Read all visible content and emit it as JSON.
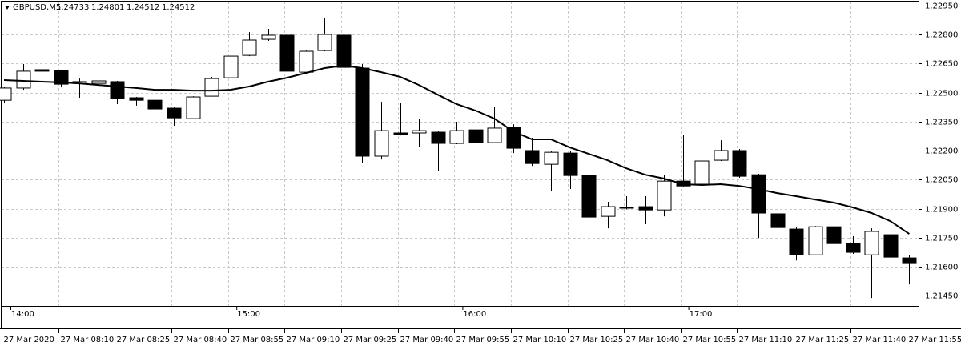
{
  "chart_data": {
    "type": "candlestick",
    "title": "GBPUSD,M5",
    "header_values": [
      1.24733,
      1.24801,
      1.24512,
      1.24512
    ],
    "ylim": [
      1.21398,
      1.22979
    ],
    "yticks": [
      {
        "value": 1.2295,
        "label": "1.22950"
      },
      {
        "value": 1.228,
        "label": "1.22800"
      },
      {
        "value": 1.2265,
        "label": "1.22650"
      },
      {
        "value": 1.225,
        "label": "1.22500"
      },
      {
        "value": 1.2235,
        "label": "1.22350"
      },
      {
        "value": 1.222,
        "label": "1.22200"
      },
      {
        "value": 1.2205,
        "label": "1.22050"
      },
      {
        "value": 1.219,
        "label": "1.21900"
      },
      {
        "value": 1.2175,
        "label": "1.21750"
      },
      {
        "value": 1.216,
        "label": "1.21600"
      },
      {
        "value": 1.2145,
        "label": "1.21450"
      }
    ],
    "grid": true,
    "time_strip": [
      "14:00",
      "15:00",
      "16:00",
      "17:00"
    ],
    "categories": [
      "27 Mar 2020",
      null,
      null,
      "27 Mar 08:10",
      null,
      null,
      "27 Mar 08:25",
      null,
      null,
      "27 Mar 08:40",
      null,
      null,
      "27 Mar 08:55",
      null,
      null,
      "27 Mar 09:10",
      null,
      null,
      "27 Mar 09:25",
      null,
      null,
      "27 Mar 09:40",
      null,
      null,
      "27 Mar 09:55",
      null,
      null,
      "27 Mar 10:10",
      null,
      null,
      "27 Mar 10:25",
      null,
      null,
      "27 Mar 10:40",
      null,
      null,
      "27 Mar 10:55",
      null,
      null,
      "27 Mar 11:10",
      null,
      null,
      "27 Mar 11:25",
      null,
      null,
      "27 Mar 11:40",
      null,
      null,
      "27 Mar 11:55"
    ],
    "bull_color": "#ffffff",
    "bear_color": "#000000",
    "outline_color": "#000000",
    "open": [
      1.22461,
      1.22524,
      1.22619,
      1.22615,
      1.22548,
      1.22548,
      1.22557,
      1.22474,
      1.22461,
      1.2242,
      1.22366,
      1.22482,
      1.22577,
      1.22693,
      1.22776,
      1.22797,
      1.22606,
      1.22718,
      1.22797,
      1.22627,
      1.22172,
      1.22292,
      1.22292,
      1.22296,
      1.22238,
      1.22308,
      1.22242,
      1.22321,
      1.22201,
      1.2213,
      1.22188,
      1.22072,
      1.21861,
      1.21907,
      1.21911,
      1.21894,
      1.22043,
      1.22027,
      1.22151,
      1.22201,
      1.22076,
      1.21874,
      1.21795,
      1.21662,
      1.21807,
      1.2172,
      1.21662,
      1.21766,
      1.21646
    ],
    "high": [
      1.22532,
      1.22648,
      1.2264,
      1.22619,
      1.22573,
      1.22573,
      1.22561,
      1.22478,
      1.22466,
      1.22424,
      1.22482,
      1.22582,
      1.22697,
      1.22813,
      1.2283,
      1.22801,
      1.22718,
      1.22888,
      1.22801,
      1.22648,
      1.22453,
      1.22449,
      1.22366,
      1.22304,
      1.2235,
      1.2249,
      1.22428,
      1.22337,
      1.22267,
      1.22197,
      1.22197,
      1.22081,
      1.21936,
      1.21965,
      1.21965,
      1.22076,
      1.22283,
      1.22217,
      1.22254,
      1.22209,
      1.22081,
      1.21882,
      1.21807,
      1.21811,
      1.21861,
      1.21758,
      1.21799,
      1.2177,
      1.21662
    ],
    "low": [
      1.22449,
      1.22515,
      1.22606,
      1.22532,
      1.22474,
      1.2254,
      1.22441,
      1.22433,
      1.22408,
      1.22329,
      1.22366,
      1.22482,
      1.22569,
      1.22689,
      1.22768,
      1.22606,
      1.22598,
      1.22714,
      1.22586,
      1.22139,
      1.22155,
      1.22279,
      1.22221,
      1.22097,
      1.22234,
      1.22234,
      1.22238,
      1.22188,
      1.22122,
      1.21994,
      1.22002,
      1.21841,
      1.21799,
      1.21898,
      1.2182,
      1.21861,
      1.22014,
      1.21944,
      1.22147,
      1.2206,
      1.21749,
      1.21799,
      1.21633,
      1.21662,
      1.21696,
      1.21667,
      1.21439,
      1.21646,
      1.21509
    ],
    "close": [
      1.22524,
      1.22611,
      1.22611,
      1.22544,
      1.22557,
      1.22561,
      1.2247,
      1.22461,
      1.22416,
      1.2237,
      1.22478,
      1.22573,
      1.22689,
      1.22772,
      1.22797,
      1.22611,
      1.22714,
      1.22801,
      1.22631,
      1.22172,
      1.22304,
      1.22283,
      1.22304,
      1.22238,
      1.22304,
      1.22242,
      1.22317,
      1.22213,
      1.22134,
      1.22192,
      1.22072,
      1.21857,
      1.21911,
      1.21903,
      1.21894,
      1.22043,
      1.22018,
      1.22147,
      1.22201,
      1.22068,
      1.21878,
      1.21803,
      1.21662,
      1.21807,
      1.2172,
      1.21675,
      1.21783,
      1.2165,
      1.21621
    ],
    "ma": {
      "color": "#000000",
      "values": [
        1.22565,
        1.22561,
        1.22557,
        1.22553,
        1.22548,
        1.2254,
        1.22532,
        1.22524,
        1.22515,
        1.22515,
        1.22511,
        1.22511,
        1.22515,
        1.22532,
        1.22557,
        1.22577,
        1.22602,
        1.22627,
        1.2264,
        1.22627,
        1.22606,
        1.22582,
        1.2254,
        1.2249,
        1.22441,
        1.22408,
        1.22366,
        1.223,
        1.22259,
        1.22259,
        1.22217,
        1.22184,
        1.22151,
        1.22109,
        1.22076,
        1.22056,
        1.22027,
        1.22023,
        1.22027,
        1.22018,
        1.22002,
        1.21981,
        1.21965,
        1.21948,
        1.21932,
        1.21907,
        1.21878,
        1.21836,
        1.2177
      ]
    }
  }
}
